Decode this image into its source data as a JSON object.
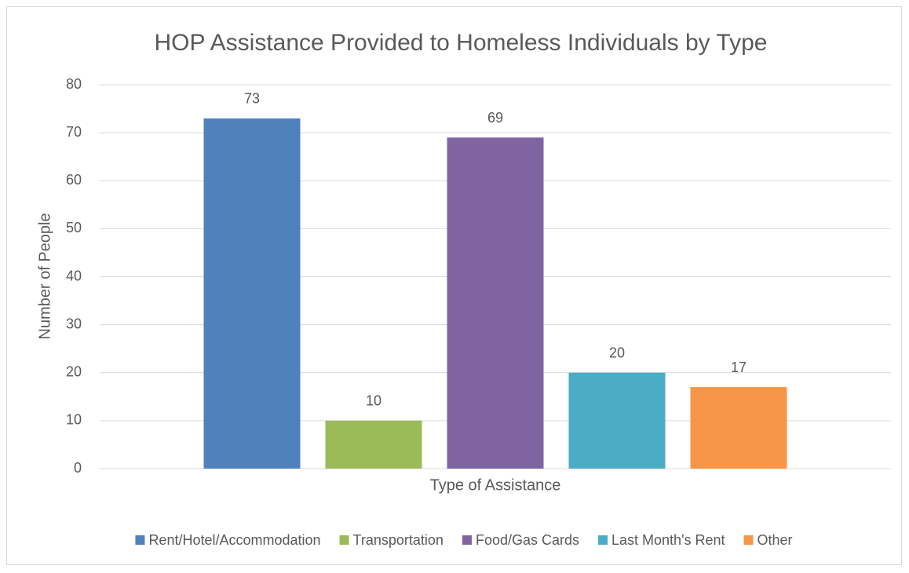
{
  "chart_data": {
    "type": "bar",
    "title": "HOP Assistance Provided to Homeless Individuals by Type",
    "x_label": "Type of Assistance",
    "y_label": "Number of People",
    "categories": [
      null
    ],
    "series": [
      {
        "name": "Rent/Hotel/Accommodation",
        "color": "#4f81bd",
        "values": [
          73
        ]
      },
      {
        "name": "Transportation",
        "color": "#9bbb59",
        "values": [
          10
        ]
      },
      {
        "name": "Food/Gas Cards",
        "color": "#8064a2",
        "values": [
          69
        ]
      },
      {
        "name": "Last Month's Rent",
        "color": "#4bacc6",
        "values": [
          20
        ]
      },
      {
        "name": "Other",
        "color": "#f79646",
        "values": [
          17
        ]
      }
    ],
    "ylim": [
      0,
      80
    ],
    "yticks": [
      0,
      10,
      20,
      30,
      40,
      50,
      60,
      70,
      80
    ],
    "grid": true,
    "legend": "bottom"
  }
}
